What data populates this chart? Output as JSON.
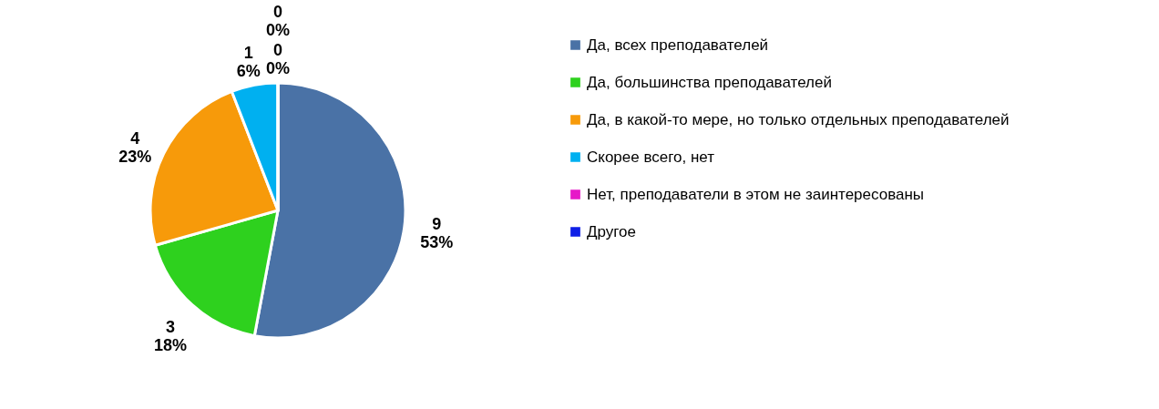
{
  "chart_data": {
    "type": "pie",
    "categories": [
      "Да, всех преподавателей",
      "Да, большинства преподавателей",
      "Да, в какой-то мере, но только отдельных преподавателей",
      "Скорее всего, нет",
      "Нет, преподаватели в этом не заинтересованы",
      "Другое"
    ],
    "values": [
      9,
      3,
      4,
      1,
      0,
      0
    ],
    "colors": [
      "#4a72a6",
      "#2ed11e",
      "#f79a0a",
      "#00b0f0",
      "#e619c8",
      "#0f1fe6"
    ],
    "value_labels": [
      "9\n53%",
      "3\n18%",
      "4\n23%",
      "1\n6%",
      "0\n0%",
      "0\n0%"
    ],
    "legend": "right"
  }
}
